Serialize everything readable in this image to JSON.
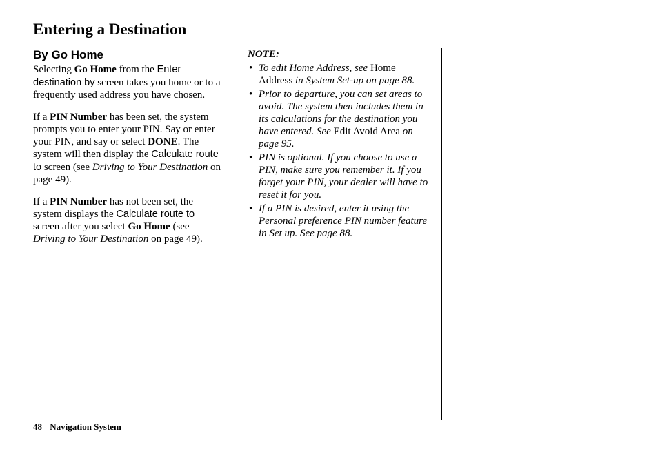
{
  "title": "Entering a Destination",
  "subheading": "By Go Home",
  "p1": {
    "a": "Selecting ",
    "b": "Go Home",
    "c": " from the ",
    "d": "Enter destination by",
    "e": " screen takes you home or to a frequently used address you have chosen."
  },
  "p2": {
    "a": "If a ",
    "b": "PIN Number",
    "c": " has been set, the system prompts you to enter your PIN. Say or enter your PIN, and say or select ",
    "d": "DONE",
    "e": ". The system will then display the ",
    "f": "Calculate route to",
    "g": " screen (see ",
    "h": "Driving to Your Destination",
    "i": " on page 49)."
  },
  "p3": {
    "a": "If a ",
    "b": "PIN Number",
    "c": " has not been set, the system displays the ",
    "d": "Calculate route to",
    "e": " screen after you select ",
    "f": "Go Home",
    "g": " (see ",
    "h": "Driving to Your Destination",
    "i": " on page 49)."
  },
  "note_label": "NOTE:",
  "notes": {
    "n1": {
      "a": "To edit Home Address, see ",
      "b": "Home Address",
      "c": " in System Set-up on page 88."
    },
    "n2": "Prior to departure, you can set areas to avoid. The system then includes them in its calculations for the destination you have entered. See ",
    "n2b": "Edit Avoid Area",
    "n2c": " on page 95.",
    "n3": "PIN is optional. If you choose to use a PIN, make sure you remember it. If you forget your PIN, your dealer will have to reset it for you.",
    "n4": "If a PIN is desired, enter it using the Personal preference PIN number feature in Set up. See page 88."
  },
  "footer": {
    "page": "48",
    "title": "Navigation System"
  }
}
